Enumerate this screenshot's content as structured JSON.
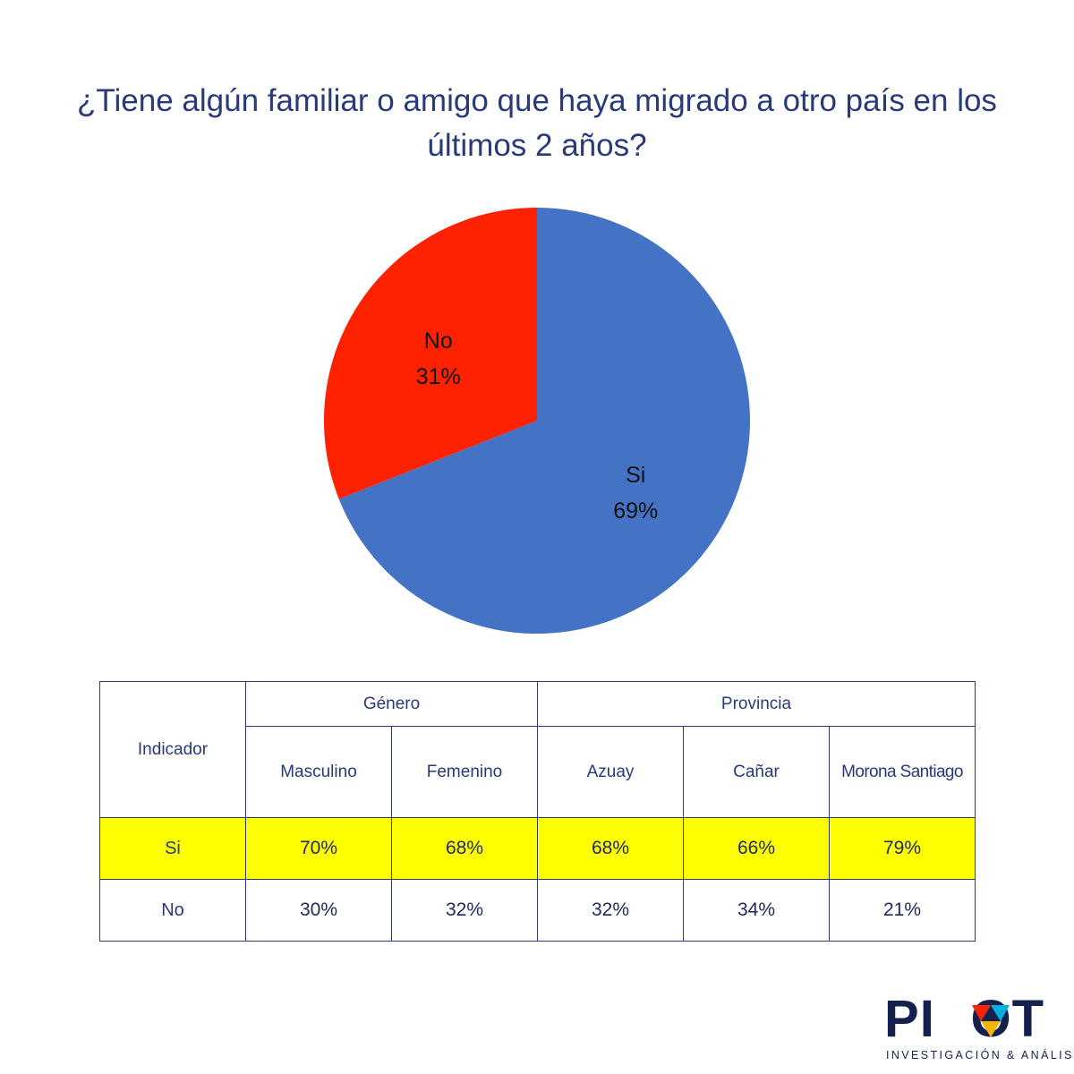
{
  "chart_data": {
    "type": "pie",
    "title_lines": [
      "¿Tiene algún familiar o amigo que haya migrado a otro país en los",
      "últimos 2 años?"
    ],
    "slices": [
      {
        "label": "Si",
        "value": 69,
        "value_label": "69%",
        "color": "#4472c4"
      },
      {
        "label": "No",
        "value": 31,
        "value_label": "31%",
        "color": "#ff2200"
      }
    ]
  },
  "table": {
    "indicator_header": "Indicador",
    "groups": [
      {
        "label": "Género",
        "columns": [
          "Masculino",
          "Femenino"
        ]
      },
      {
        "label": "Provincia",
        "columns": [
          "Azuay",
          "Cañar",
          "Morona Santiago"
        ]
      }
    ],
    "rows": [
      {
        "label": "Si",
        "values": [
          "70%",
          "68%",
          "68%",
          "66%",
          "79%"
        ],
        "highlight": "#ffff00"
      },
      {
        "label": "No",
        "values": [
          "30%",
          "32%",
          "32%",
          "34%",
          "21%"
        ]
      }
    ]
  },
  "logo": {
    "word": "PIVOT",
    "subtitle": "INVESTIGACIÓN & ANÁLISIS",
    "colors": [
      "#ff2200",
      "#f5b400",
      "#00b0e0",
      "#14214d"
    ]
  }
}
